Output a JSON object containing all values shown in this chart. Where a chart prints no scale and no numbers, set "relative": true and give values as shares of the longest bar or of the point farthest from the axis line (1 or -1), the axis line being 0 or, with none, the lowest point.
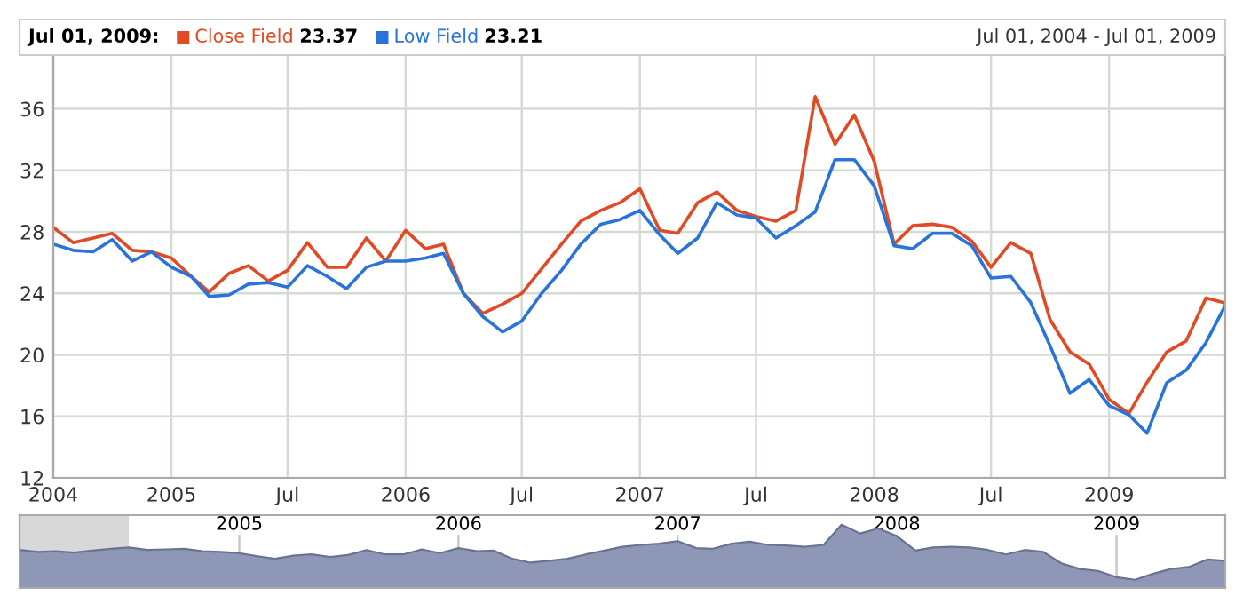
{
  "chart_data": [
    {
      "type": "line",
      "annotations": [
        "Jul 01, 2009:",
        "23.37",
        "23.21",
        "Jul 01, 2004 - Jul 01, 2009"
      ],
      "x": [
        "2004-07",
        "2004-08",
        "2004-09",
        "2004-10",
        "2004-11",
        "2004-12",
        "2005-01",
        "2005-02",
        "2005-03",
        "2005-04",
        "2005-05",
        "2005-06",
        "2005-07",
        "2005-08",
        "2005-09",
        "2005-10",
        "2005-11",
        "2005-12",
        "2006-01",
        "2006-02",
        "2006-03",
        "2006-04",
        "2006-05",
        "2006-06",
        "2006-07",
        "2006-08",
        "2006-09",
        "2006-10",
        "2006-11",
        "2006-12",
        "2007-01",
        "2007-02",
        "2007-03",
        "2007-04",
        "2007-05",
        "2007-06",
        "2007-07",
        "2007-08",
        "2007-09",
        "2007-10",
        "2007-11",
        "2007-12",
        "2008-01",
        "2008-02",
        "2008-03",
        "2008-04",
        "2008-05",
        "2008-06",
        "2008-07",
        "2008-08",
        "2008-09",
        "2008-10",
        "2008-11",
        "2008-12",
        "2009-01",
        "2009-02",
        "2009-03",
        "2009-04",
        "2009-05",
        "2009-06",
        "2009-07"
      ],
      "series": [
        {
          "name": "Close Field",
          "color": "#e04a24",
          "values": [
            28.3,
            27.3,
            27.6,
            27.9,
            26.8,
            26.7,
            26.3,
            25.1,
            24.1,
            25.3,
            25.8,
            24.8,
            25.5,
            27.3,
            25.7,
            25.7,
            27.6,
            26.1,
            28.1,
            26.9,
            27.2,
            24.0,
            22.7,
            23.3,
            24.0,
            25.6,
            27.2,
            28.7,
            29.4,
            29.9,
            30.8,
            28.1,
            27.9,
            29.9,
            30.6,
            29.4,
            29.0,
            28.7,
            29.4,
            36.8,
            33.7,
            35.6,
            32.6,
            27.2,
            28.4,
            28.5,
            28.3,
            27.4,
            25.7,
            27.3,
            26.6,
            22.3,
            20.2,
            19.4,
            17.1,
            16.2,
            18.2,
            20.2,
            20.9,
            23.7,
            23.37
          ]
        },
        {
          "name": "Low Field",
          "color": "#2a73d9",
          "values": [
            27.2,
            26.8,
            26.7,
            27.5,
            26.1,
            26.7,
            25.7,
            25.1,
            23.8,
            23.9,
            24.6,
            24.7,
            24.4,
            25.8,
            25.1,
            24.3,
            25.7,
            26.1,
            26.1,
            26.3,
            26.6,
            24.0,
            22.5,
            21.5,
            22.2,
            24.0,
            25.5,
            27.2,
            28.5,
            28.8,
            29.4,
            27.8,
            26.6,
            27.6,
            29.9,
            29.1,
            28.9,
            27.6,
            28.4,
            29.3,
            32.7,
            32.7,
            31.0,
            27.1,
            26.9,
            27.9,
            27.9,
            27.1,
            25.0,
            25.1,
            23.4,
            20.6,
            17.5,
            18.4,
            16.7,
            16.1,
            14.9,
            18.2,
            19.0,
            20.8,
            23.21
          ]
        }
      ],
      "xlim": [
        "2004-07-01",
        "2009-07-01"
      ],
      "xticks": [
        {
          "value": "2004-07-01",
          "label": "2004"
        },
        {
          "value": "2005-01-01",
          "label": "2005"
        },
        {
          "value": "2005-07-01",
          "label": "Jul"
        },
        {
          "value": "2006-01-01",
          "label": "2006"
        },
        {
          "value": "2006-07-01",
          "label": "Jul"
        },
        {
          "value": "2007-01-01",
          "label": "2007"
        },
        {
          "value": "2007-07-01",
          "label": "Jul"
        },
        {
          "value": "2008-01-01",
          "label": "2008"
        },
        {
          "value": "2008-07-01",
          "label": "Jul"
        },
        {
          "value": "2009-01-01",
          "label": "2009"
        }
      ],
      "ylim": [
        12,
        39.5
      ],
      "yticks": [
        12,
        16,
        20,
        24,
        28,
        32,
        36
      ],
      "grid": true,
      "legend": "top left",
      "marker": "none",
      "line_style": "solid"
    },
    {
      "type": "area",
      "relative": true,
      "tick_labels": "x",
      "grid": "x",
      "x": [
        "2004-01",
        "2004-02",
        "2004-03",
        "2004-04",
        "2004-05",
        "2004-06",
        "2004-07",
        "2004-08",
        "2004-09",
        "2004-10",
        "2004-11",
        "2004-12",
        "2005-01",
        "2005-02",
        "2005-03",
        "2005-04",
        "2005-05",
        "2005-06",
        "2005-07",
        "2005-08",
        "2005-09",
        "2005-10",
        "2005-11",
        "2005-12",
        "2006-01",
        "2006-02",
        "2006-03",
        "2006-04",
        "2006-05",
        "2006-06",
        "2006-07",
        "2006-08",
        "2006-09",
        "2006-10",
        "2006-11",
        "2006-12",
        "2007-01",
        "2007-02",
        "2007-03",
        "2007-04",
        "2007-05",
        "2007-06",
        "2007-07",
        "2007-08",
        "2007-09",
        "2007-10",
        "2007-11",
        "2007-12",
        "2008-01",
        "2008-02",
        "2008-03",
        "2008-04",
        "2008-05",
        "2008-06",
        "2008-07",
        "2008-08",
        "2008-09",
        "2008-10",
        "2008-11",
        "2008-12",
        "2009-01",
        "2009-02",
        "2009-03",
        "2009-04",
        "2009-05",
        "2009-06",
        "2009-07"
      ],
      "series": [
        {
          "color": "#8e97b5",
          "values": [
            0.6,
            0.57,
            0.58,
            0.56,
            0.59,
            0.62,
            0.64,
            0.6,
            0.61,
            0.62,
            0.58,
            0.57,
            0.55,
            0.5,
            0.46,
            0.51,
            0.53,
            0.49,
            0.52,
            0.6,
            0.53,
            0.53,
            0.61,
            0.55,
            0.63,
            0.58,
            0.59,
            0.46,
            0.4,
            0.43,
            0.46,
            0.53,
            0.59,
            0.65,
            0.68,
            0.7,
            0.74,
            0.63,
            0.62,
            0.7,
            0.73,
            0.68,
            0.67,
            0.65,
            0.68,
            1.0,
            0.86,
            0.94,
            0.82,
            0.59,
            0.64,
            0.65,
            0.64,
            0.6,
            0.53,
            0.6,
            0.57,
            0.39,
            0.3,
            0.27,
            0.17,
            0.13,
            0.22,
            0.3,
            0.33,
            0.45,
            0.43
          ]
        }
      ],
      "xlim": [
        "2004-01-01",
        "2009-07-01"
      ],
      "xticks": [
        {
          "value": "2004-01-01",
          "label": null
        },
        {
          "value": "2005-01-01",
          "label": "2005"
        },
        {
          "value": "2006-01-01",
          "label": "2006"
        },
        {
          "value": "2007-01-01",
          "label": "2007"
        },
        {
          "value": "2008-01-01",
          "label": "2008"
        },
        {
          "value": "2009-01-01",
          "label": "2009"
        }
      ],
      "bands": [
        {
          "axis": "x",
          "from": "2004-01-01",
          "to": "2004-07-01",
          "color": "#d8d8d8"
        }
      ]
    }
  ]
}
